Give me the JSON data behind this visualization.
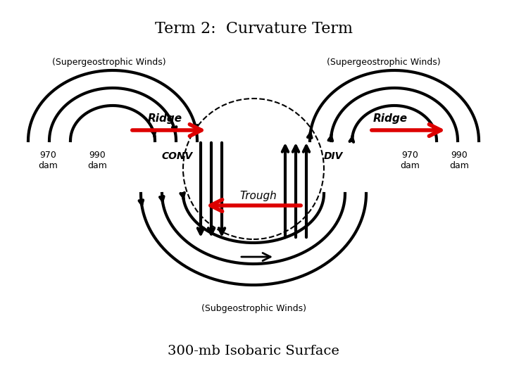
{
  "title": "Term 2:  Curvature Term",
  "subtitle_left": "(Supergeostrophic Winds)",
  "subtitle_right": "(Supergeostrophic Winds)",
  "label_subgeo": "(Subgeostrophic Winds)",
  "label_bottom": "300-mb Isobaric Surface",
  "label_ridge_left": "Ridge",
  "label_ridge_right": "Ridge",
  "label_trough": "Trough",
  "label_conv": "CONV",
  "label_div": "DIV",
  "label_970_left": "970\ndam",
  "label_990_left": "990\ndam",
  "label_970_right": "970\ndam",
  "label_990_right": "990\ndam",
  "bg_color": "#ffffff",
  "line_color": "#000000",
  "red_color": "#dd0000",
  "arrow_lw": 3.5,
  "arc_lw": 3.0
}
